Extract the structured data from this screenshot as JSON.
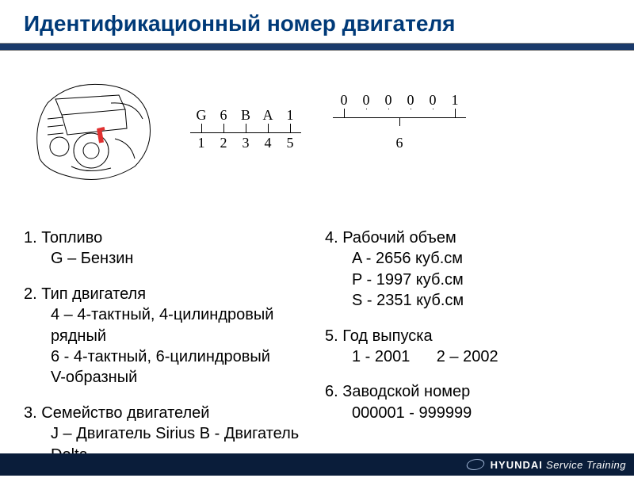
{
  "title": "Идентификационный номер двигателя",
  "colors": {
    "title_color": "#003a78",
    "stripe_color": "#1a3a6b",
    "footer_color": "#0a1d3a",
    "text_color": "#000000",
    "footer_text_color": "#ffffff",
    "background": "#ffffff"
  },
  "fonts": {
    "title_fontsize": 28,
    "body_fontsize": 20,
    "code_fontsize": 18,
    "footer_fontsize": 13
  },
  "engine_code": {
    "group1": {
      "chars": [
        "G",
        "6",
        "B",
        "A",
        "1"
      ],
      "indices": [
        "1",
        "2",
        "3",
        "4",
        "5"
      ]
    },
    "group2": {
      "chars": [
        "0",
        "0",
        "0",
        "0",
        "0",
        "1"
      ],
      "center_index": "6"
    }
  },
  "left_items": [
    {
      "num": "1.",
      "label": "Топливо",
      "rows": [
        "G – Бензин"
      ]
    },
    {
      "num": "2.",
      "label": "Тип двигателя",
      "rows": [
        "4 – 4-тактный, 4-цилиндровый",
        "рядный",
        "6 - 4-тактный, 6-цилиндровый",
        "V-образный"
      ]
    },
    {
      "num": "3.",
      "label": "Семейство двигателей",
      "rows": [
        "J – Двигатель Sirius B - Двигатель Delta"
      ]
    }
  ],
  "right_items": [
    {
      "num": "4.",
      "label": "Рабочий объем",
      "rows": [
        "A - 2656 куб.см",
        "P - 1997 куб.см",
        "S - 2351 куб.см"
      ]
    },
    {
      "num": "5.",
      "label": "Год выпуска",
      "rows": [
        "1 - 2001        2 – 2002"
      ]
    },
    {
      "num": "6.",
      "label": "Заводской номер",
      "rows": [
        "000001 - 999999"
      ]
    }
  ],
  "footer": {
    "logo_name": "hyundai-logo",
    "brand": "HYUNDAI",
    "suffix": "Service Training"
  }
}
